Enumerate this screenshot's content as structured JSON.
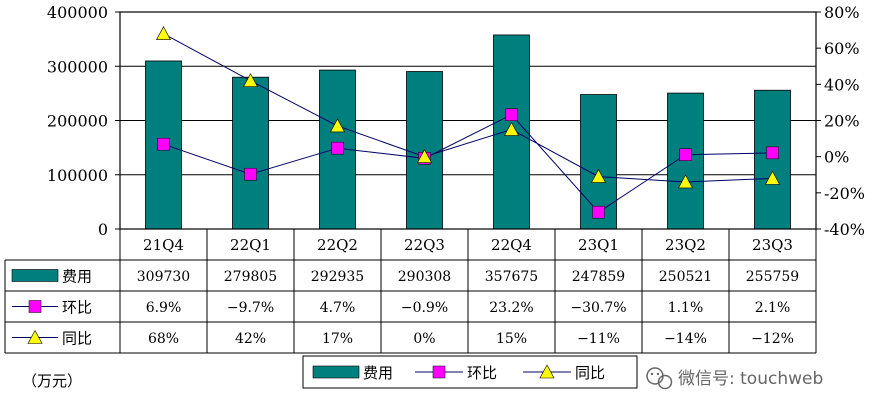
{
  "chart_data": {
    "type": "bar",
    "categories": [
      "21Q4",
      "22Q1",
      "22Q2",
      "22Q3",
      "22Q4",
      "23Q1",
      "23Q2",
      "23Q3"
    ],
    "series": [
      {
        "name": "费用",
        "type": "bar",
        "axis": "left",
        "values": [
          309730,
          279805,
          292935,
          290308,
          357675,
          247859,
          250521,
          255759
        ],
        "labels": [
          "309730",
          "279805",
          "292935",
          "290308",
          "357675",
          "247859",
          "250521",
          "255759"
        ],
        "color": "#007f7f"
      },
      {
        "name": "环比",
        "type": "line",
        "axis": "right",
        "marker": "square",
        "values": [
          6.9,
          -9.7,
          4.7,
          -0.9,
          23.2,
          -30.7,
          1.1,
          2.1
        ],
        "labels": [
          "6.9%",
          "-9.7%",
          "4.7%",
          "-0.9%",
          "23.2%",
          "-30.7%",
          "1.1%",
          "2.1%"
        ],
        "color": "#ff00ff"
      },
      {
        "name": "同比",
        "type": "line",
        "axis": "right",
        "marker": "triangle",
        "values": [
          68,
          42,
          17,
          0,
          15,
          -11,
          -14,
          -12
        ],
        "labels": [
          "68%",
          "42%",
          "17%",
          "0%",
          "15%",
          "-11%",
          "-14%",
          "-12%"
        ],
        "color": "#ffff00"
      }
    ],
    "y_left": {
      "min": 0,
      "max": 400000,
      "ticks": [
        "0",
        "100000",
        "200000",
        "300000",
        "400000"
      ]
    },
    "y_right": {
      "min": -40,
      "max": 80,
      "ticks": [
        "-40%",
        "-20%",
        "0%",
        "20%",
        "40%",
        "60%",
        "80%"
      ]
    },
    "unit_label": "（万元）",
    "legend_position": "bottom-center",
    "grid": true,
    "data_table": true
  },
  "watermark": {
    "text": "微信号: touchweb",
    "icon": "wechat-icon"
  }
}
